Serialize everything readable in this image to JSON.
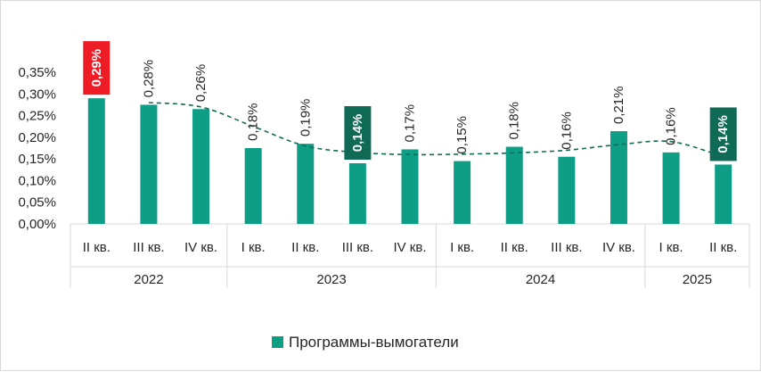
{
  "chart_data": {
    "type": "bar",
    "ylim": [
      0,
      0.35
    ],
    "y_ticks": [
      "0,00%",
      "0,05%",
      "0,10%",
      "0,15%",
      "0,20%",
      "0,25%",
      "0,30%",
      "0,35%"
    ],
    "y_tick_values": [
      0,
      0.05,
      0.1,
      0.15,
      0.2,
      0.25,
      0.3,
      0.35
    ],
    "grid": false,
    "legend_position": "bottom",
    "categories": [
      "II кв.",
      "III кв.",
      "IV кв.",
      "I кв.",
      "II кв.",
      "III кв.",
      "IV кв.",
      "I кв.",
      "II кв.",
      "III кв.",
      "IV кв.",
      "I кв.",
      "II кв."
    ],
    "years": [
      {
        "label": "2022",
        "from": 0,
        "to": 2
      },
      {
        "label": "2023",
        "from": 3,
        "to": 6
      },
      {
        "label": "2024",
        "from": 7,
        "to": 10
      },
      {
        "label": "2025",
        "from": 11,
        "to": 12
      }
    ],
    "series": [
      {
        "name": "Программы-вымогатели",
        "color": "#0e9e86",
        "values": [
          0.29,
          0.275,
          0.265,
          0.175,
          0.185,
          0.14,
          0.172,
          0.145,
          0.178,
          0.155,
          0.214,
          0.165,
          0.137
        ],
        "data_labels": [
          "0,29%",
          "0,28%",
          "0,26%",
          "0,18%",
          "0,19%",
          "0,14%",
          "0,17%",
          "0,15%",
          "0,18%",
          "0,16%",
          "0,21%",
          "0,16%",
          "0,14%"
        ],
        "highlight": [
          {
            "index": 0,
            "color": "#ee1c25"
          },
          {
            "index": 5,
            "color": "#0f6b55"
          },
          {
            "index": 12,
            "color": "#0f6b55"
          }
        ]
      }
    ],
    "trendline": {
      "style": "dashed",
      "color": "#0f6b55",
      "from_index": 1,
      "values": [
        0.28,
        0.27,
        0.225,
        0.18,
        0.165,
        0.16,
        0.161,
        0.164,
        0.17,
        0.183,
        0.19,
        0.155
      ]
    }
  }
}
